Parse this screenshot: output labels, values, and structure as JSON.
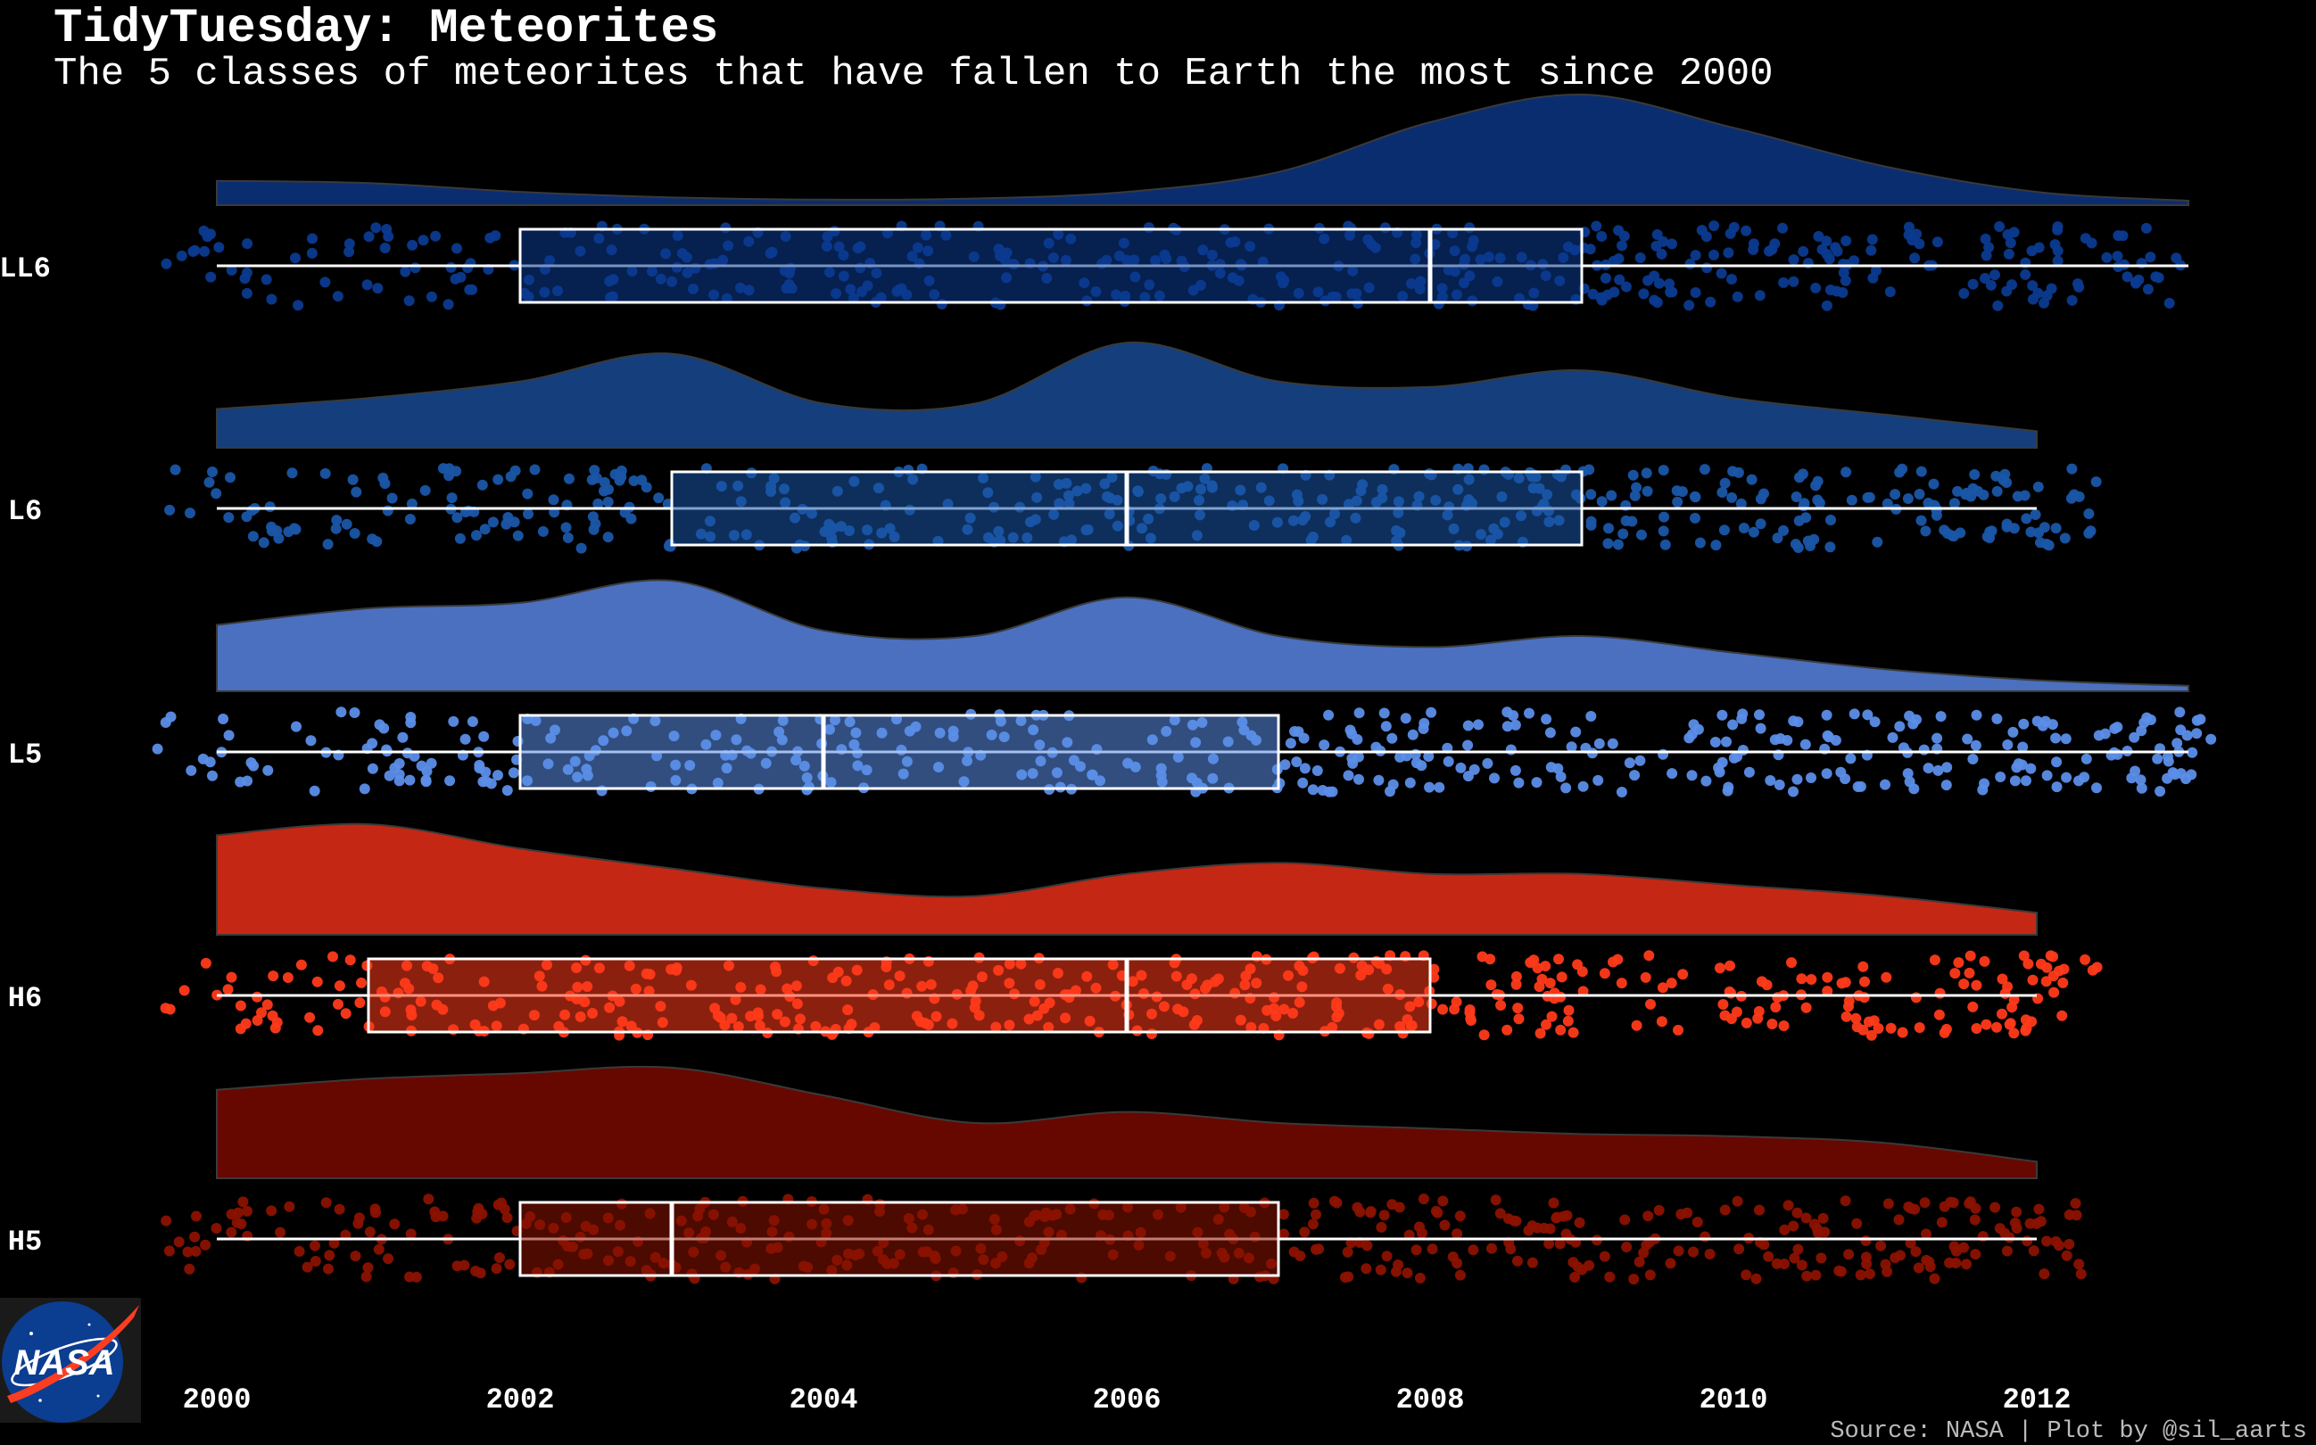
{
  "title": "TidyTuesday: Meteorites",
  "subtitle": "The 5 classes of meteorites that have fallen to Earth the most since 2000",
  "caption": "Source: NASA | Plot by @sil_aarts",
  "logo_text": "NASA",
  "colors": {
    "background": "#000000",
    "text": "#ffffff",
    "box": "#ffffff"
  },
  "chart_data": {
    "type": "raincloud",
    "xlim": [
      2000,
      2013
    ],
    "x_ticks": [
      2000,
      2002,
      2004,
      2006,
      2008,
      2010,
      2012
    ],
    "grid": false,
    "legend": "none",
    "series": [
      {
        "name": "LL6",
        "color": "#0b3a8f",
        "density_color": "#0a2d70",
        "box": {
          "min": 2000,
          "q1": 2002,
          "median": 2008,
          "q3": 2009,
          "max": 2013
        },
        "density": [
          0.22,
          0.2,
          0.12,
          0.07,
          0.05,
          0.06,
          0.12,
          0.3,
          0.75,
          1.0,
          0.7,
          0.35,
          0.12,
          0.04
        ],
        "points_extent": [
          1999.6,
          2013.0
        ]
      },
      {
        "name": "L6",
        "color": "#1a56a8",
        "density_color": "#143f7c",
        "box": {
          "min": 2000,
          "q1": 2003,
          "median": 2006,
          "q3": 2009,
          "max": 2012
        },
        "density": [
          0.35,
          0.45,
          0.6,
          0.85,
          0.4,
          0.4,
          0.95,
          0.6,
          0.55,
          0.7,
          0.45,
          0.3,
          0.15
        ],
        "points_extent": [
          1999.6,
          2012.4
        ]
      },
      {
        "name": "L5",
        "color": "#5b8ee8",
        "density_color": "#4a70bf",
        "box": {
          "min": 2000,
          "q1": 2002,
          "median": 2004,
          "q3": 2007,
          "max": 2013
        },
        "density": [
          0.6,
          0.75,
          0.8,
          1.0,
          0.55,
          0.5,
          0.85,
          0.5,
          0.4,
          0.5,
          0.35,
          0.2,
          0.1,
          0.05
        ],
        "points_extent": [
          1999.6,
          2013.2
        ]
      },
      {
        "name": "H6",
        "color": "#ff3a1a",
        "density_color": "#c42814",
        "box": {
          "min": 2000,
          "q1": 2001,
          "median": 2006,
          "q3": 2008,
          "max": 2012
        },
        "density": [
          0.9,
          1.0,
          0.78,
          0.6,
          0.42,
          0.35,
          0.55,
          0.65,
          0.55,
          0.55,
          0.45,
          0.35,
          0.2
        ],
        "points_extent": [
          1999.6,
          2012.4
        ]
      },
      {
        "name": "H5",
        "color": "#8b1200",
        "density_color": "#660800",
        "box": {
          "min": 2000,
          "q1": 2002,
          "median": 2003,
          "q3": 2007,
          "max": 2012
        },
        "density": [
          0.8,
          0.9,
          0.95,
          1.0,
          0.75,
          0.5,
          0.6,
          0.5,
          0.45,
          0.4,
          0.38,
          0.32,
          0.15
        ],
        "points_extent": [
          1999.6,
          2012.3
        ]
      }
    ]
  }
}
